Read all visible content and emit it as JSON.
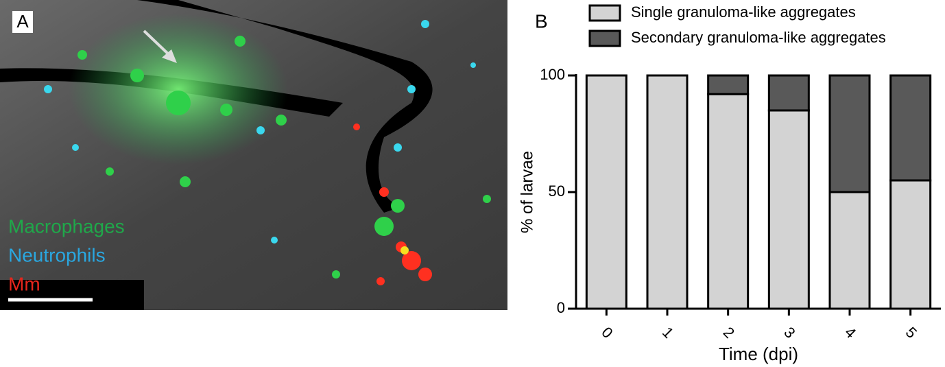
{
  "panel_a": {
    "label": "A",
    "legend": [
      {
        "text": "Macrophages",
        "color": "#1fa84a"
      },
      {
        "text": "Neutrophils",
        "color": "#2aa7e0"
      },
      {
        "text": "Mm",
        "color": "#e8261c"
      }
    ]
  },
  "chart_data": {
    "type": "bar",
    "stacked": true,
    "panel_label": "B",
    "x_label": "Time (dpi)",
    "y_label": "% of larvae",
    "categories": [
      "0",
      "1",
      "2",
      "3",
      "4",
      "5"
    ],
    "series": [
      {
        "name": "Single granuloma-like aggregates",
        "color": "#d3d3d3",
        "values": [
          100,
          100,
          92,
          85,
          50,
          55
        ]
      },
      {
        "name": "Secondary granuloma-like aggregates",
        "color": "#595959",
        "values": [
          0,
          0,
          8,
          15,
          50,
          45
        ]
      }
    ],
    "ylim": [
      0,
      100
    ],
    "yticks": [
      0,
      50,
      100
    ]
  }
}
